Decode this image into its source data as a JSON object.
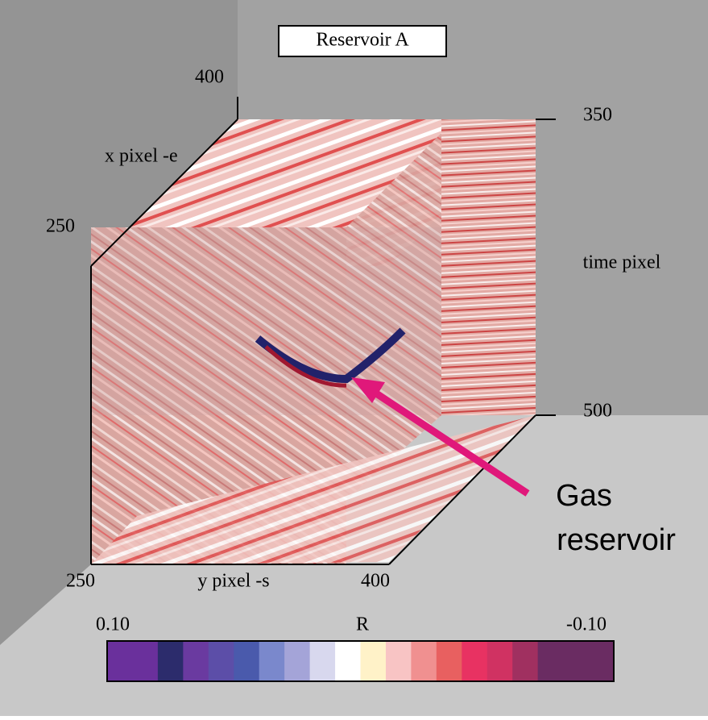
{
  "title": "Reservoir A",
  "axes": {
    "x": {
      "label": "x  pixel -e",
      "ticks": [
        "400",
        "250"
      ]
    },
    "y": {
      "label": "y  pixel  -s",
      "ticks": [
        "250",
        "400"
      ]
    },
    "time": {
      "label": "time pixel",
      "ticks": [
        "350",
        "500"
      ]
    }
  },
  "annotation": {
    "lines": [
      "Gas",
      "reservoir"
    ],
    "color": "#e0187a"
  },
  "colorbar": {
    "label": "R",
    "min_label": "0.10",
    "max_label": "-0.10",
    "colors": [
      "#6a309c",
      "#6a309c",
      "#2c2c6c",
      "#6a3aa0",
      "#5c4ea8",
      "#4a5aac",
      "#7a88cc",
      "#a4a4d8",
      "#d8d8ee",
      "#ffffff",
      "#fff2c8",
      "#f8c4c4",
      "#f09090",
      "#e86060",
      "#e83262",
      "#d03262",
      "#a03060",
      "#6a2c62",
      "#6a2c62",
      "#6a2c62"
    ]
  }
}
